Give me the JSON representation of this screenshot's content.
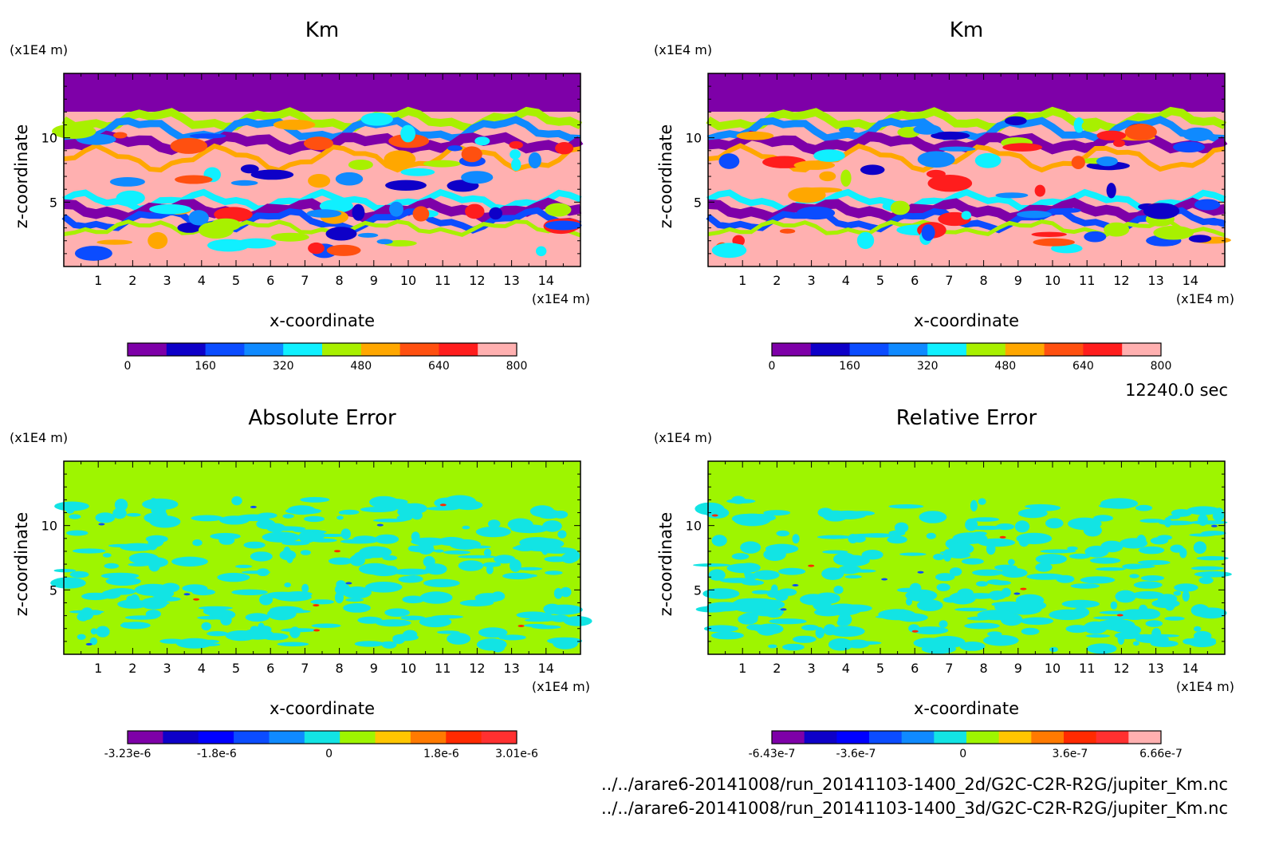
{
  "time_label": "12240.0 sec",
  "files": [
    "../../arare6-20141008/run_20141103-1400_2d/G2C-C2R-R2G/jupiter_Km.nc",
    "../../arare6-20141008/run_20141103-1400_3d/G2C-C2R-R2G/jupiter_Km.nc"
  ],
  "colors": {
    "km": [
      "#7e00a8",
      "#0e00c8",
      "#0b4cff",
      "#0f8aff",
      "#10f0ff",
      "#a8f000",
      "#ffa700",
      "#ff5010",
      "#ff1d1d",
      "#ffb0b0"
    ],
    "abs": [
      "#7e00a8",
      "#0e00c8",
      "#0000ff",
      "#0b4cff",
      "#0f8aff",
      "#12e4e4",
      "#9ef500",
      "#ffc600",
      "#ff7a00",
      "#ff2a00",
      "#ff3030"
    ],
    "rel": [
      "#7e00a8",
      "#0e00c8",
      "#0000ff",
      "#0b4cff",
      "#0f8aff",
      "#12e4e4",
      "#9ef500",
      "#ffc600",
      "#ff7a00",
      "#ff2a00",
      "#ff3030",
      "#ffb0b0"
    ]
  },
  "chart_data": [
    {
      "type": "heatmap",
      "title": "Km",
      "xlabel": "x-coordinate",
      "ylabel": "z-coordinate",
      "x_unit": "(x1E4 m)",
      "y_unit": "(x1E4 m)",
      "x_ticks": [
        "1",
        "2",
        "3",
        "4",
        "5",
        "6",
        "7",
        "8",
        "9",
        "10",
        "11",
        "12",
        "13",
        "14"
      ],
      "y_ticks": [
        "5",
        "10"
      ],
      "xlim": [
        0,
        15
      ],
      "ylim": [
        0,
        15
      ],
      "colorbar_ticks": [
        "0",
        "160",
        "320",
        "480",
        "640",
        "800"
      ],
      "colorbar_range": [
        0,
        800
      ]
    },
    {
      "type": "heatmap",
      "title": "Km",
      "xlabel": "x-coordinate",
      "ylabel": "z-coordinate",
      "x_unit": "(x1E4 m)",
      "y_unit": "(x1E4 m)",
      "x_ticks": [
        "1",
        "2",
        "3",
        "4",
        "5",
        "6",
        "7",
        "8",
        "9",
        "10",
        "11",
        "12",
        "13",
        "14"
      ],
      "y_ticks": [
        "5",
        "10"
      ],
      "xlim": [
        0,
        15
      ],
      "ylim": [
        0,
        15
      ],
      "colorbar_ticks": [
        "0",
        "160",
        "320",
        "480",
        "640",
        "800"
      ],
      "colorbar_range": [
        0,
        800
      ]
    },
    {
      "type": "heatmap",
      "title": "Absolute Error",
      "xlabel": "x-coordinate",
      "ylabel": "z-coordinate",
      "x_unit": "(x1E4 m)",
      "y_unit": "(x1E4 m)",
      "x_ticks": [
        "1",
        "2",
        "3",
        "4",
        "5",
        "6",
        "7",
        "8",
        "9",
        "10",
        "11",
        "12",
        "13",
        "14"
      ],
      "y_ticks": [
        "5",
        "10"
      ],
      "xlim": [
        0,
        15
      ],
      "ylim": [
        0,
        15
      ],
      "colorbar_ticks": [
        "-3.23e-6",
        "-1.8e-6",
        "0",
        "1.8e-6",
        "3.01e-6"
      ],
      "colorbar_range": [
        -3.23e-06,
        3.01e-06
      ]
    },
    {
      "type": "heatmap",
      "title": "Relative Error",
      "xlabel": "x-coordinate",
      "ylabel": "z-coordinate",
      "x_unit": "(x1E4 m)",
      "y_unit": "(x1E4 m)",
      "x_ticks": [
        "1",
        "2",
        "3",
        "4",
        "5",
        "6",
        "7",
        "8",
        "9",
        "10",
        "11",
        "12",
        "13",
        "14"
      ],
      "y_ticks": [
        "5",
        "10"
      ],
      "xlim": [
        0,
        15
      ],
      "ylim": [
        0,
        15
      ],
      "colorbar_ticks": [
        "-6.43e-7",
        "-3.6e-7",
        "0",
        "3.6e-7",
        "6.66e-7"
      ],
      "colorbar_range": [
        -6.43e-07,
        6.66e-07
      ]
    }
  ]
}
